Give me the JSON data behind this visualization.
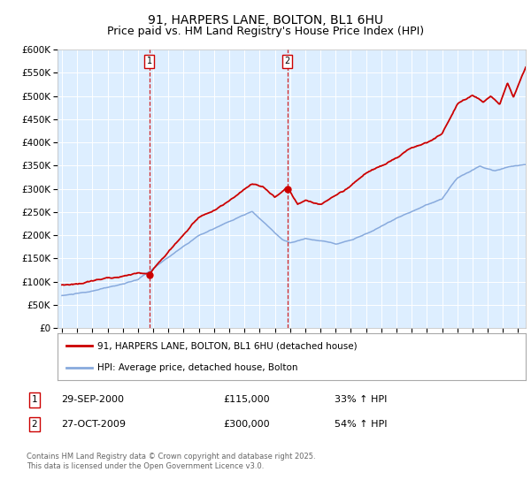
{
  "title": "91, HARPERS LANE, BOLTON, BL1 6HU",
  "subtitle": "Price paid vs. HM Land Registry's House Price Index (HPI)",
  "title_fontsize": 10,
  "subtitle_fontsize": 9,
  "ylim": [
    0,
    600000
  ],
  "yticks": [
    0,
    50000,
    100000,
    150000,
    200000,
    250000,
    300000,
    350000,
    400000,
    450000,
    500000,
    550000,
    600000
  ],
  "bg_color": "#ddeeff",
  "line1_color": "#cc0000",
  "line2_color": "#88aadd",
  "vline_color": "#cc0000",
  "legend_label1": "91, HARPERS LANE, BOLTON, BL1 6HU (detached house)",
  "legend_label2": "HPI: Average price, detached house, Bolton",
  "purchase1_date": "29-SEP-2000",
  "purchase1_price": "£115,000",
  "purchase1_hpi": "33% ↑ HPI",
  "purchase1_year": 2000.75,
  "purchase1_value": 115000,
  "purchase2_date": "27-OCT-2009",
  "purchase2_price": "£300,000",
  "purchase2_hpi": "54% ↑ HPI",
  "purchase2_year": 2009.83,
  "purchase2_value": 300000,
  "footer": "Contains HM Land Registry data © Crown copyright and database right 2025.\nThis data is licensed under the Open Government Licence v3.0.",
  "xstart": 1995,
  "xend": 2025
}
